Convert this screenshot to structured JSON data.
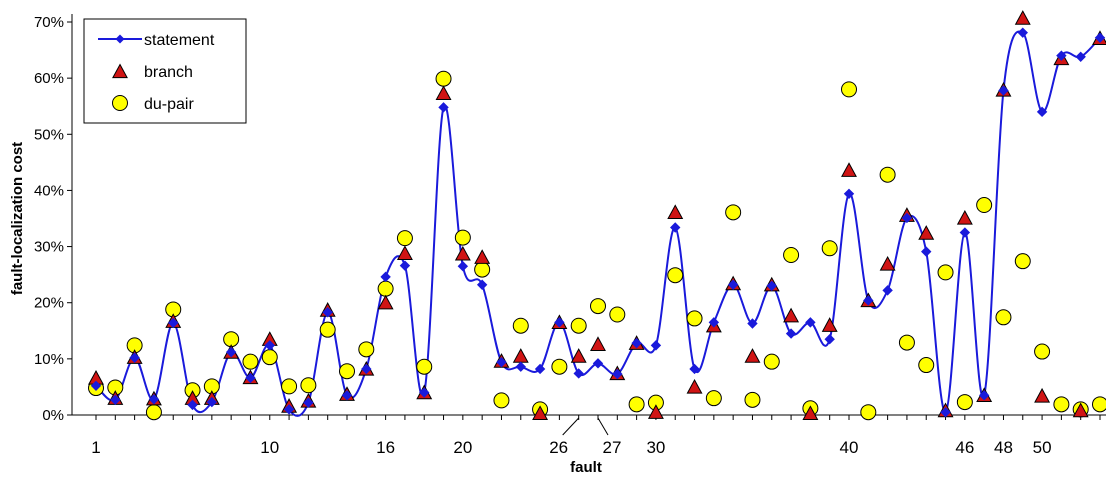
{
  "chart_data": {
    "type": "scatter",
    "xlabel": "fault",
    "ylabel": "fault-localization cost",
    "xlim": [
      1,
      53
    ],
    "ylim": [
      0,
      70
    ],
    "y_unit": "%",
    "y_ticks": [
      0,
      10,
      20,
      30,
      40,
      50,
      60,
      70
    ],
    "y_tick_labels": [
      "0%",
      "10%",
      "20%",
      "30%",
      "40%",
      "50%",
      "60%",
      "70%"
    ],
    "x_ticks": [
      1,
      10,
      16,
      20,
      26,
      27,
      30,
      40,
      46,
      48,
      50
    ],
    "x_tick_labels": [
      "1",
      "10",
      "16",
      "20",
      "26",
      "27",
      "30",
      "40",
      "46",
      "48",
      "50"
    ],
    "legend_position": "top-left",
    "grid": false,
    "x": [
      1,
      2,
      3,
      4,
      5,
      6,
      7,
      8,
      9,
      10,
      11,
      12,
      13,
      14,
      15,
      16,
      17,
      18,
      19,
      20,
      21,
      22,
      23,
      24,
      25,
      26,
      27,
      28,
      29,
      30,
      31,
      32,
      33,
      34,
      35,
      36,
      37,
      38,
      39,
      40,
      41,
      42,
      43,
      44,
      45,
      46,
      47,
      48,
      49,
      50,
      51,
      52,
      53
    ],
    "series": [
      {
        "name": "statement",
        "marker": "diamond",
        "line": "smooth",
        "color": "#1a1adb",
        "values": [
          5.2,
          2.7,
          10.2,
          2.8,
          16.4,
          1.8,
          2.3,
          11.2,
          6.6,
          12.4,
          1.0,
          2.2,
          18.3,
          3.5,
          8.2,
          24.6,
          26.6,
          4.0,
          54.8,
          26.5,
          23.2,
          9.4,
          8.6,
          8.2,
          16.5,
          7.4,
          9.2,
          7.3,
          12.8,
          12.4,
          33.4,
          8.2,
          16.5,
          23.2,
          16.3,
          23.0,
          14.5,
          16.5,
          13.5,
          39.4,
          20.4,
          22.2,
          35.1,
          29.1,
          0.5,
          32.5,
          3.5,
          57.8,
          68.1,
          54.0,
          64.0,
          63.8,
          67.2
        ]
      },
      {
        "name": "branch",
        "marker": "triangle",
        "line": "none",
        "color": "#d01414",
        "values": [
          6.5,
          2.9,
          10.2,
          2.8,
          16.6,
          2.9,
          2.9,
          11.1,
          6.6,
          13.4,
          1.5,
          2.4,
          18.6,
          3.6,
          8.1,
          19.9,
          28.7,
          3.9,
          57.2,
          28.6,
          28.0,
          9.5,
          10.4,
          0.2,
          16.4,
          10.4,
          12.5,
          7.3,
          12.7,
          0.4,
          36.0,
          4.9,
          15.8,
          23.3,
          10.4,
          23.1,
          17.6,
          0.2,
          15.9,
          43.5,
          20.3,
          26.8,
          35.5,
          32.3,
          0.7,
          35.0,
          3.4,
          57.8,
          70.6,
          3.3,
          63.4,
          0.7,
          67.0
        ]
      },
      {
        "name": "du-pair",
        "marker": "circle",
        "line": "none",
        "color": "#ffff00",
        "values": [
          4.8,
          4.9,
          12.4,
          0.5,
          18.8,
          4.4,
          5.1,
          13.5,
          9.5,
          10.3,
          5.1,
          5.3,
          15.2,
          7.8,
          11.7,
          22.5,
          31.5,
          8.6,
          59.9,
          31.6,
          25.9,
          2.6,
          15.9,
          1.0,
          8.6,
          15.9,
          19.4,
          17.9,
          1.9,
          2.2,
          24.9,
          17.2,
          3.0,
          36.1,
          2.7,
          9.5,
          28.5,
          1.2,
          29.7,
          58.0,
          0.5,
          42.8,
          12.9,
          8.9,
          25.4,
          2.3,
          37.4,
          17.4,
          27.4,
          11.3,
          1.9,
          1.0,
          1.9
        ]
      }
    ]
  }
}
